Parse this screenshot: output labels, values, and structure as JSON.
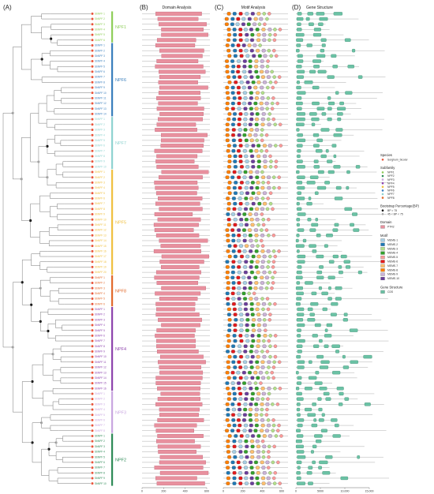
{
  "panels": {
    "A": "(A)",
    "B": "(B)",
    "C": "(C)",
    "D": "(D)"
  },
  "titles": {
    "domain": "Domain Analysis",
    "motif": "Motif Analysis",
    "gene": "Gene Structure"
  },
  "axes": {
    "domain_ticks": [
      "0",
      "200",
      "400",
      "600"
    ],
    "motif_ticks": [
      "0",
      "200",
      "400",
      "600"
    ],
    "gene_ticks": [
      "0",
      "5000",
      "10,000",
      "15,000"
    ]
  },
  "subfamilies": [
    {
      "name": "NPF1",
      "color": "#8fce5a",
      "count": 6
    },
    {
      "name": "NPF6",
      "color": "#3a7fbd",
      "count": 14
    },
    {
      "name": "NPF7",
      "color": "#8fd3d0",
      "count": 10
    },
    {
      "name": "NPF5",
      "color": "#f0c040",
      "count": 20
    },
    {
      "name": "NPF8",
      "color": "#e26a2c",
      "count": 6
    },
    {
      "name": "NPF4",
      "color": "#8e44ad",
      "count": 16
    },
    {
      "name": "NPF3",
      "color": "#c9a6e0",
      "count": 8
    },
    {
      "name": "NPF2",
      "color": "#2e8b57",
      "count": 10
    }
  ],
  "leaf_prefix": "SbNPF",
  "legend": {
    "species": {
      "title": "Species",
      "items": [
        {
          "label": "Sorghum_bicolor",
          "color": "#e8553c"
        }
      ]
    },
    "subfamily": {
      "title": "Subfamily",
      "items": [
        {
          "label": "NPF1",
          "color": "#8fce5a"
        },
        {
          "label": "NPF2",
          "color": "#2e8b57"
        },
        {
          "label": "NPF3",
          "color": "#c9a6e0"
        },
        {
          "label": "NPF4",
          "color": "#8e44ad"
        },
        {
          "label": "NPF5",
          "color": "#f0c040"
        },
        {
          "label": "NPF6",
          "color": "#3a7fbd"
        },
        {
          "label": "NPF7",
          "color": "#8fd3d0"
        },
        {
          "label": "NPF8",
          "color": "#e26a2c"
        }
      ]
    },
    "bootstrap": {
      "title": "Bootstrap Percentage(BP)",
      "items": [
        {
          "label": "BP > 75",
          "color": "#111111"
        },
        {
          "label": "45 < BP < 75",
          "color": "#aaaaaa"
        }
      ]
    },
    "domain": {
      "title": "Domain",
      "items": [
        {
          "label": "PTR2",
          "color": "#e8909e"
        }
      ]
    },
    "motif": {
      "title": "Motif",
      "items": [
        {
          "label": "MEME-1",
          "color": "#a6cee3"
        },
        {
          "label": "MEME-2",
          "color": "#1f78b4"
        },
        {
          "label": "MEME-3",
          "color": "#b2df8a"
        },
        {
          "label": "MEME-4",
          "color": "#33a02c"
        },
        {
          "label": "MEME-5",
          "color": "#fb9a99"
        },
        {
          "label": "MEME-6",
          "color": "#e31a1c"
        },
        {
          "label": "MEME-7",
          "color": "#fdbf6f"
        },
        {
          "label": "MEME-8",
          "color": "#ff7f00"
        },
        {
          "label": "MEME-9",
          "color": "#cab2d6"
        },
        {
          "label": "MEME-10",
          "color": "#6a3d9a"
        }
      ]
    },
    "gene": {
      "title": "Gene Structure",
      "items": [
        {
          "label": "CDS",
          "color": "#6bc2a5"
        }
      ]
    }
  }
}
